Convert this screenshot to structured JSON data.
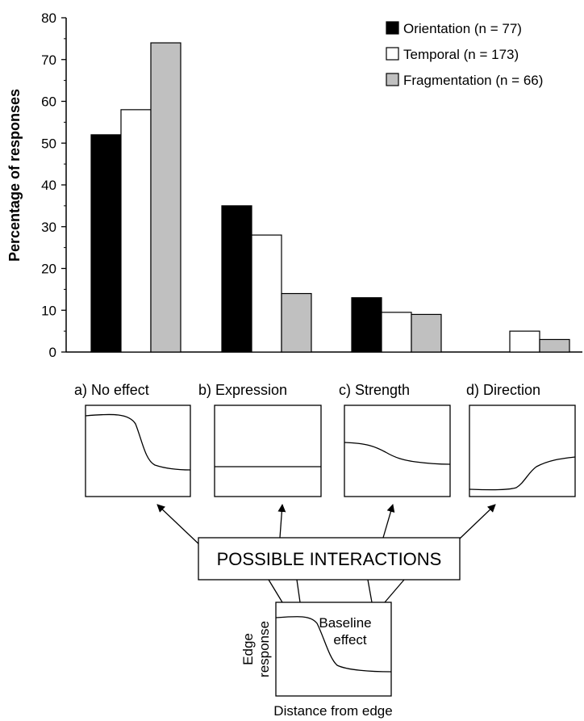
{
  "chart_data": {
    "type": "bar",
    "title": "",
    "xlabel": "",
    "ylabel": "Percentage of responses",
    "ylim": [
      0,
      80
    ],
    "yticks": [
      0,
      10,
      20,
      30,
      40,
      50,
      60,
      70,
      80
    ],
    "categories": [
      "No effect",
      "Expression",
      "Strength",
      "Direction"
    ],
    "series": [
      {
        "name": "Orientation (n = 77)",
        "color": "#000000",
        "values": [
          52,
          35,
          13,
          0
        ]
      },
      {
        "name": "Temporal (n = 173)",
        "color": "#ffffff",
        "values": [
          58,
          28,
          9.5,
          5
        ]
      },
      {
        "name": "Fragmentation (n = 66)",
        "color": "#c0c0c0",
        "values": [
          74,
          14,
          9,
          3
        ]
      }
    ],
    "legend_position": "top-right",
    "grid": false
  },
  "panels": [
    {
      "label": "a) No effect",
      "curve": "step-down"
    },
    {
      "label": "b) Expression",
      "curve": "flat"
    },
    {
      "label": "c) Strength",
      "curve": "weak-step-down"
    },
    {
      "label": "d) Direction",
      "curve": "step-up"
    }
  ],
  "interactions_label": "POSSIBLE INTERACTIONS",
  "baseline": {
    "annotation_line1": "Baseline",
    "annotation_line2": "effect",
    "ylabel_line1": "Edge",
    "ylabel_line2": "response",
    "xlabel": "Distance from edge"
  }
}
